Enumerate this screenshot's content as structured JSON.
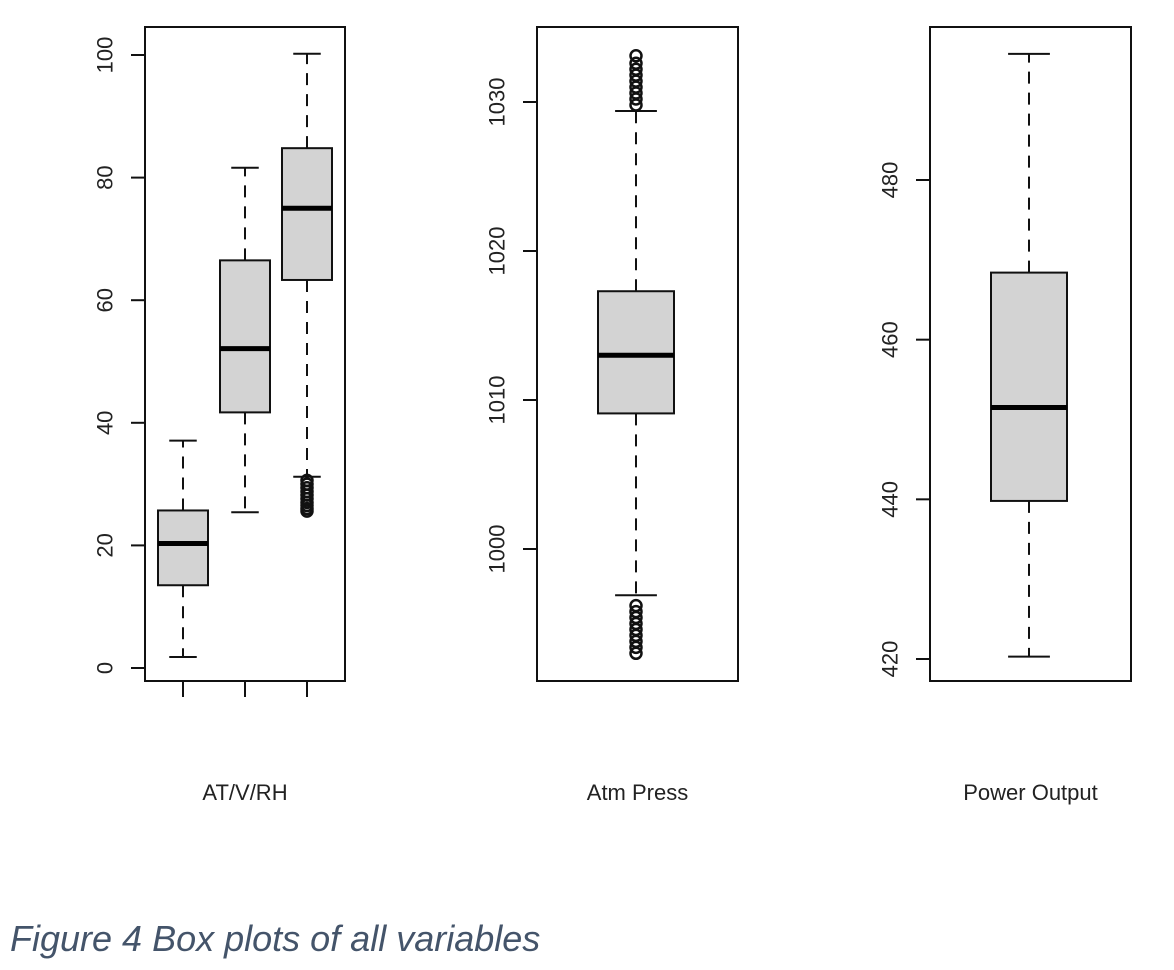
{
  "caption": "Figure 4 Box plots of all variables",
  "chart_data": [
    {
      "type": "box",
      "xlabel": "AT/V/RH",
      "ylim": [
        0,
        100
      ],
      "ticks": [
        0,
        20,
        40,
        60,
        80,
        100
      ],
      "boxes": [
        {
          "min": 1.8,
          "q1": 13.5,
          "median": 20.3,
          "q3": 25.7,
          "max": 37.1,
          "outliers": []
        },
        {
          "min": 25.4,
          "q1": 41.7,
          "median": 52.1,
          "q3": 66.5,
          "max": 81.6,
          "outliers": []
        },
        {
          "min": 31.2,
          "q1": 63.3,
          "median": 75.0,
          "q3": 84.8,
          "max": 100.2,
          "outliers": [
            25.6,
            26.0,
            26.5,
            27.0,
            27.6,
            28.2,
            28.8,
            29.4,
            30.0,
            30.6
          ]
        }
      ]
    },
    {
      "type": "box",
      "xlabel": "Atm Press",
      "ylim": [
        992.6,
        1033.1
      ],
      "ticks": [
        1000,
        1010,
        1020,
        1030
      ],
      "boxes": [
        {
          "min": 996.9,
          "q1": 1009.1,
          "median": 1013.0,
          "q3": 1017.3,
          "max": 1029.4,
          "outliers": [
            993.0,
            993.4,
            993.8,
            994.2,
            994.6,
            995.0,
            995.4,
            995.8,
            996.2,
            1029.8,
            1030.2,
            1030.6,
            1031.0,
            1031.4,
            1031.8,
            1032.2,
            1032.6,
            1033.1
          ]
        }
      ]
    },
    {
      "type": "box",
      "xlabel": "Power Output",
      "ylim": [
        417.8,
        497.2
      ],
      "ticks": [
        420,
        440,
        460,
        480
      ],
      "boxes": [
        {
          "min": 420.3,
          "q1": 439.8,
          "median": 451.5,
          "q3": 468.4,
          "max": 495.8,
          "outliers": []
        }
      ]
    }
  ]
}
